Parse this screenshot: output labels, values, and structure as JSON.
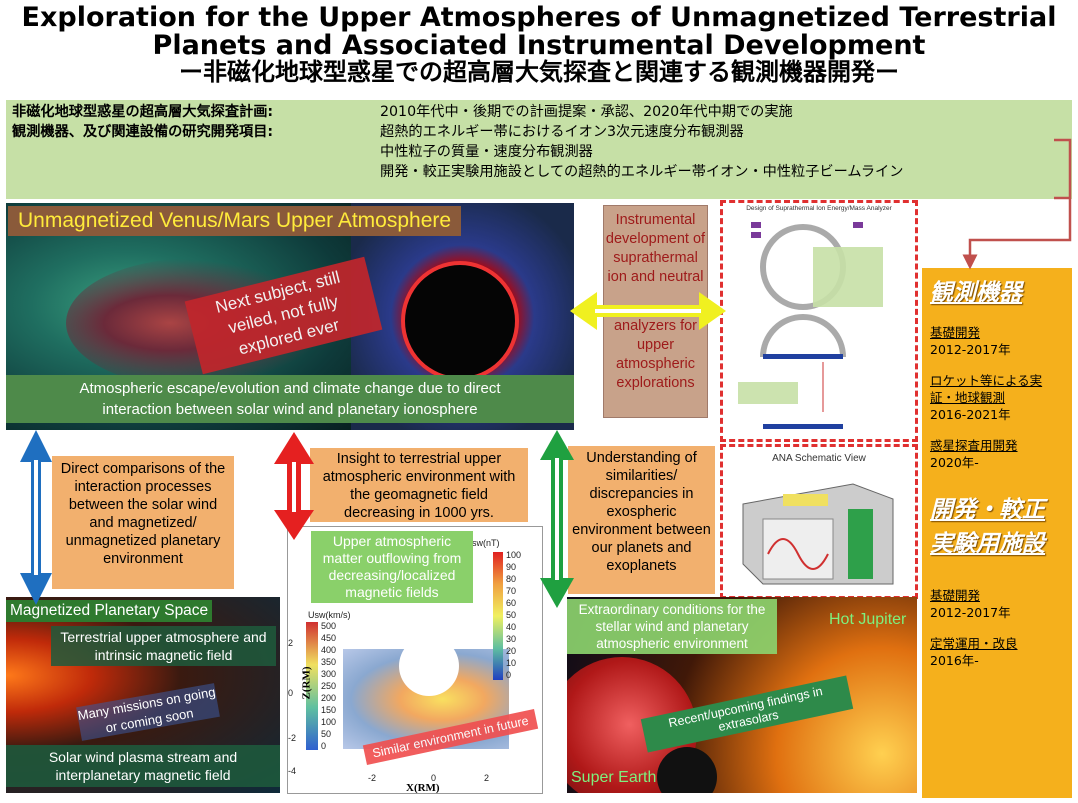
{
  "title": {
    "en_line1": "Exploration for the Upper Atmospheres of Unmagnetized Terrestrial",
    "en_line2": "Planets and Associated Instrumental Development",
    "jp": "ー非磁化地球型惑星での超高層大気探査と関連する観測機器開発ー"
  },
  "plan": {
    "label1": "非磁化地球型惑星の超高層大気探査計画:",
    "value1": "2010年代中・後期での計画提案・承認、2020年代中期での実施",
    "label2": "観測機器、及び関連設備の研究開発項目:",
    "items": [
      "超熱的エネルギー帯におけるイオン3次元速度分布観測器",
      "中性粒子の質量・速度分布観測器",
      "開発・較正実験用施設としての超熱的エネルギー帯イオン・中性粒子ビームライン"
    ]
  },
  "venus": {
    "heading": "Unmagnetized Venus/Mars Upper Atmosphere",
    "tag": "Next subject, still veiled, not fully explored ever",
    "caption_line1": "Atmospheric escape/evolution and climate change due to direct",
    "caption_line2": "interaction between solar wind and planetary ionosphere"
  },
  "instrument": {
    "text1": "Instrumental development of suprathermal ion and neutral",
    "text2": "analyzers for upper atmospheric explorations"
  },
  "analyzer": {
    "design_caption": "Design of Suprathermal Ion Energy/Mass Analyzer",
    "schematic_caption": "ANA Schematic View"
  },
  "sidebar": {
    "heading1": "観測機器",
    "items1": [
      {
        "label": "基礎開発",
        "years": "2012-2017年"
      },
      {
        "label": "ロケット等による実証・地球観測",
        "years": "2016-2021年"
      },
      {
        "label": "惑星探査用開発",
        "years": "2020年-"
      }
    ],
    "heading2": "開発・較正実験用施設",
    "items2": [
      {
        "label": "基礎開発",
        "years": "2012-2017年"
      },
      {
        "label": "定常運用・改良",
        "years": "2016年-"
      }
    ]
  },
  "comparisons": {
    "direct": "Direct comparisons of the interaction processes between the solar wind and magnetized/ unmagnetized planetary environment",
    "insight": "Insight to terrestrial upper atmospheric environment with the geomagnetic field decreasing in 1000 yrs.",
    "understanding": "Understanding of similarities/ discrepancies in exospheric environment between our planets and exoplanets"
  },
  "magnetized": {
    "heading": "Magnetized Planetary Space",
    "text1": "Terrestrial upper atmosphere and intrinsic magnetic field",
    "text2": "Many missions on going or coming soon",
    "text3": "Solar wind plasma stream and interplanetary magnetic field"
  },
  "earthplot": {
    "tag": "Upper atmospheric matter outflowing from decreasing/localized magnetic fields",
    "future": "Similar environment in future",
    "u_label": "Usw(km/s)",
    "b_label": "Bsw(nT)",
    "u_ticks": [
      "500",
      "450",
      "400",
      "350",
      "300",
      "250",
      "200",
      "150",
      "100",
      "50",
      "0"
    ],
    "b_ticks": [
      "100",
      "90",
      "80",
      "70",
      "60",
      "50",
      "40",
      "30",
      "20",
      "10",
      "0"
    ],
    "x_ticks": [
      "-2",
      "0",
      "2"
    ],
    "y_ticks": [
      "2",
      "0",
      "-2",
      "-4"
    ],
    "x_label": "X(RM)",
    "y_label": "Z(RM)"
  },
  "exo": {
    "extraordinary": "Extraordinary conditions for the stellar wind and planetary atmospheric environment",
    "hot_jupiter": "Hot Jupiter",
    "super_earth": "Super Earth",
    "recent": "Recent/upcoming findings in extrasolars"
  }
}
